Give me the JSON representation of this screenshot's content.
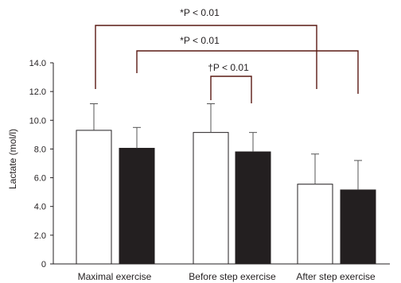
{
  "chart_data": {
    "type": "bar",
    "title": "",
    "xlabel": "",
    "ylabel": "Lactate (mol/l)",
    "ylim": [
      0,
      14
    ],
    "y_ticks": [
      {
        "value": 0,
        "label": "0"
      },
      {
        "value": 2,
        "label": "2.0"
      },
      {
        "value": 4,
        "label": "4.0"
      },
      {
        "value": 6,
        "label": "6.0"
      },
      {
        "value": 8,
        "label": "8.0"
      },
      {
        "value": 10,
        "label": "10.0"
      },
      {
        "value": 12,
        "label": "12.0"
      },
      {
        "value": 14,
        "label": "14.0"
      }
    ],
    "categories": [
      "Maximal exercise",
      "Before step exercise",
      "After step exercise"
    ],
    "series": [
      {
        "fill": "#ffffff",
        "values": [
          9.3,
          9.15,
          5.55
        ],
        "errors": [
          1.85,
          2.0,
          2.1
        ]
      },
      {
        "fill": "#231f20",
        "values": [
          8.05,
          7.8,
          5.15
        ],
        "errors": [
          1.45,
          1.35,
          2.05
        ]
      }
    ],
    "grid": false,
    "legend": "none",
    "annotations": [
      {
        "label": "*P < 0.01",
        "from": [
          0,
          0
        ],
        "to": [
          2,
          0
        ]
      },
      {
        "label": "*P < 0.01",
        "from": [
          0,
          1
        ],
        "to": [
          2,
          1
        ]
      },
      {
        "label": "†P < 0.01",
        "from": [
          1,
          0
        ],
        "to": [
          1,
          1
        ]
      }
    ],
    "colors": {
      "axis": "#231f20",
      "bracket": "#5a1a14",
      "error_bar": "#555555"
    }
  }
}
